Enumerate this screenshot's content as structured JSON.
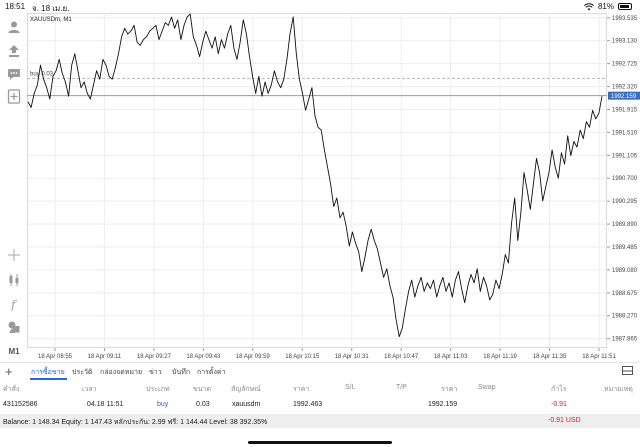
{
  "status_bar": {
    "time": "18:51",
    "date": "จ. 18 เม.ย.",
    "battery": "81%"
  },
  "symbol": {
    "label": "XAUUSDm, M1"
  },
  "toolbar": {
    "icons": [
      "account-icon",
      "trade-icon",
      "chat-icon",
      "new-order-icon"
    ],
    "bottom_icons": [
      "crosshair-icon",
      "chart-type-icon",
      "indicators-icon",
      "objects-icon"
    ],
    "timeframe": "M1"
  },
  "chart_data": {
    "type": "line",
    "symbol": "XAUUSDm",
    "timeframe": "M1",
    "x_tick_labels": [
      "18 Apr 08:55",
      "18 Apr 09:11",
      "18 Apr 09:27",
      "18 Apr 09:43",
      "18 Apr 09:59",
      "18 Apr 10:15",
      "18 Apr 10:31",
      "18 Apr 10:47",
      "18 Apr 11:03",
      "18 Apr 11:19",
      "18 Apr 11:35",
      "18 Apr 11:51"
    ],
    "y_ticks": [
      1993.535,
      1993.13,
      1992.725,
      1992.32,
      1991.915,
      1991.51,
      1991.105,
      1990.7,
      1990.295,
      1989.89,
      1989.485,
      1989.08,
      1988.675,
      1988.27,
      1987.865
    ],
    "ylim": [
      1987.7,
      1993.62
    ],
    "order": {
      "label": "buy 0.03",
      "price": 1992.463
    },
    "current_price": {
      "label": "1992.159",
      "value": 1992.159
    },
    "grid": true,
    "values": [
      1992.05,
      1991.95,
      1992.2,
      1992.35,
      1992.7,
      1992.45,
      1992.3,
      1992.1,
      1992.5,
      1992.6,
      1992.8,
      1992.55,
      1992.4,
      1992.15,
      1992.7,
      1992.9,
      1992.6,
      1992.3,
      1992.4,
      1992.2,
      1992.1,
      1992.35,
      1992.6,
      1992.45,
      1992.8,
      1992.7,
      1992.5,
      1992.45,
      1992.65,
      1992.9,
      1993.2,
      1993.35,
      1993.25,
      1993.3,
      1993.4,
      1993.1,
      1993.05,
      1993.15,
      1993.2,
      1993.3,
      1993.35,
      1993.4,
      1993.15,
      1993.3,
      1993.45,
      1993.4,
      1993.55,
      1993.35,
      1993.5,
      1993.15,
      1993.4,
      1993.55,
      1993.6,
      1993.2,
      1993.05,
      1992.85,
      1993.1,
      1993.3,
      1993.15,
      1993.0,
      1993.2,
      1992.9,
      1993.15,
      1993.0,
      1993.25,
      1993.4,
      1993.0,
      1992.8,
      1993.1,
      1993.5,
      1993.25,
      1992.85,
      1992.5,
      1992.2,
      1992.5,
      1992.15,
      1992.4,
      1992.2,
      1992.35,
      1992.6,
      1992.4,
      1992.3,
      1992.45,
      1992.8,
      1993.25,
      1993.55,
      1992.9,
      1992.45,
      1992.2,
      1991.9,
      1992.1,
      1992.3,
      1991.8,
      1991.6,
      1991.55,
      1991.2,
      1990.9,
      1990.6,
      1990.2,
      1990.35,
      1990.0,
      1990.1,
      1989.85,
      1989.5,
      1989.75,
      1989.55,
      1989.4,
      1989.05,
      1989.3,
      1989.6,
      1989.8,
      1989.6,
      1989.45,
      1989.2,
      1988.95,
      1989.1,
      1988.8,
      1988.6,
      1988.2,
      1987.9,
      1988.05,
      1988.4,
      1988.7,
      1988.9,
      1988.6,
      1988.8,
      1988.95,
      1988.7,
      1988.85,
      1988.75,
      1988.9,
      1988.6,
      1988.8,
      1988.95,
      1988.7,
      1988.85,
      1988.6,
      1988.9,
      1989.05,
      1988.75,
      1988.5,
      1988.8,
      1989.0,
      1988.85,
      1989.1,
      1988.7,
      1988.95,
      1988.8,
      1988.55,
      1988.65,
      1988.9,
      1988.75,
      1989.0,
      1989.35,
      1989.2,
      1989.9,
      1990.35,
      1989.6,
      1990.1,
      1990.8,
      1990.5,
      1990.15,
      1990.6,
      1991.05,
      1990.8,
      1990.3,
      1990.55,
      1990.8,
      1991.2,
      1990.9,
      1990.7,
      1991.15,
      1990.95,
      1991.45,
      1991.1,
      1991.35,
      1991.25,
      1991.55,
      1991.4,
      1991.7,
      1991.6,
      1991.9,
      1991.75,
      1991.85,
      1992.15
    ]
  },
  "tabs": [
    {
      "label": "การซื้อขาย",
      "active": true
    },
    {
      "label": "ประวัติ",
      "active": false
    },
    {
      "label": "กล่องจดหมาย",
      "active": false
    },
    {
      "label": "ข่าว",
      "active": false
    },
    {
      "label": "บันทึก",
      "active": false
    },
    {
      "label": "การตั้งค่า",
      "active": false
    }
  ],
  "table": {
    "headers": [
      "คำสั่ง",
      "เวลา",
      "ประเภท",
      "ขนาด",
      "สัญลักษณ์",
      "ราคา",
      "S/L",
      "T/P",
      "ราคา",
      "Swap",
      "กำไร",
      "หมายเหตุ"
    ],
    "row": {
      "order": "431152586",
      "time": "04.18 11:51",
      "type": "buy",
      "size": "0.03",
      "symbol": "xauusdm",
      "price": "1992.463",
      "sl": "",
      "tp": "",
      "current": "1992.159",
      "swap": "",
      "profit": "-0.91",
      "comment": ""
    }
  },
  "footer": {
    "balance_text": "Balance: 1 148.34  Equity: 1 147.43  หลักประกัน: 2.99  ฟรี: 1 144.44  Level: 38 392.35%",
    "total_profit": "-0.91  USD"
  },
  "colors": {
    "accent": "#2a66d6",
    "loss": "#d81f1f",
    "price_tag": "#3b6fbd",
    "line": "#111111"
  }
}
